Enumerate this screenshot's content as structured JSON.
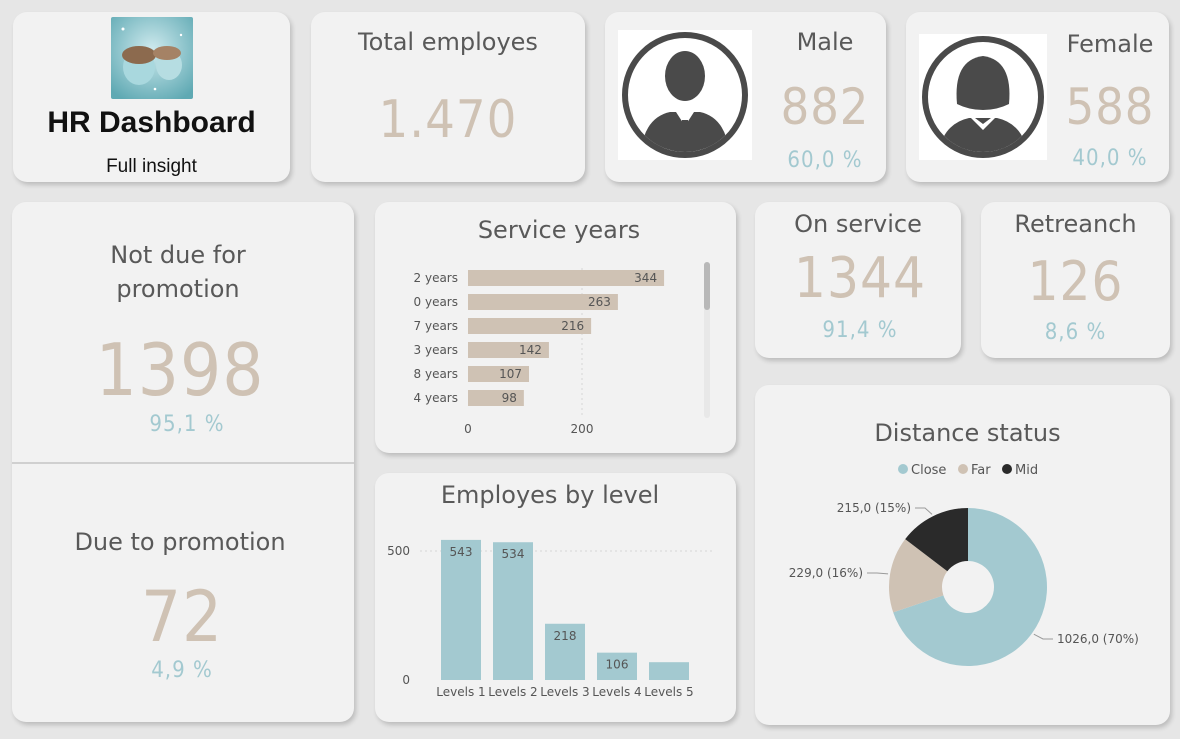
{
  "header": {
    "title": "HR Dashboard",
    "subtitle": "Full insight"
  },
  "total": {
    "label": "Total employes",
    "value": "1.470"
  },
  "male": {
    "label": "Male",
    "value": "882",
    "pct": "60,0 %"
  },
  "female": {
    "label": "Female",
    "value": "588",
    "pct": "40,0 %"
  },
  "not_due": {
    "label_line1": "Not due for",
    "label_line2": "promotion",
    "value": "1398",
    "pct": "95,1 %"
  },
  "due": {
    "label": "Due to promotion",
    "value": "72",
    "pct": "4,9 %"
  },
  "on_service": {
    "label": "On service",
    "value": "1344",
    "pct": "91,4 %"
  },
  "retreanch": {
    "label": "Retreanch",
    "value": "126",
    "pct": "8,6 %"
  },
  "colors": {
    "beige": "#cfc2b4",
    "blue": "#a3c9d0",
    "dark": "#2a2a2a",
    "card": "#f2f2f2"
  },
  "chart_data": [
    {
      "type": "bar",
      "orientation": "horizontal",
      "title": "Service years",
      "categories": [
        "2 years",
        "0 years",
        "7 years",
        "3 years",
        "8 years",
        "4 years"
      ],
      "values": [
        344,
        263,
        216,
        142,
        107,
        98
      ],
      "xticks": [
        "0",
        "200"
      ],
      "xlim": [
        0,
        400
      ],
      "color": "#cfc2b4"
    },
    {
      "type": "bar",
      "title": "Employes by level",
      "categories": [
        "Levels 1",
        "Levels 2",
        "Levels 3",
        "Levels 4",
        "Levels 5"
      ],
      "values": [
        543,
        534,
        218,
        106,
        69
      ],
      "data_labels": [
        "543",
        "534",
        "218",
        "106",
        ""
      ],
      "yticks": [
        "0",
        "500"
      ],
      "ylim": [
        0,
        560
      ],
      "color": "#a3c9d0"
    },
    {
      "type": "pie",
      "title": "Distance status",
      "legend": [
        "Close",
        "Far",
        "Mid"
      ],
      "legend_position": "top",
      "values": [
        1026,
        229,
        215
      ],
      "labels": [
        "1026,0 (70%)",
        "229,0 (16%)",
        "215,0 (15%)"
      ],
      "colors": [
        "#a3c9d0",
        "#cfc2b4",
        "#2a2a2a"
      ]
    }
  ]
}
